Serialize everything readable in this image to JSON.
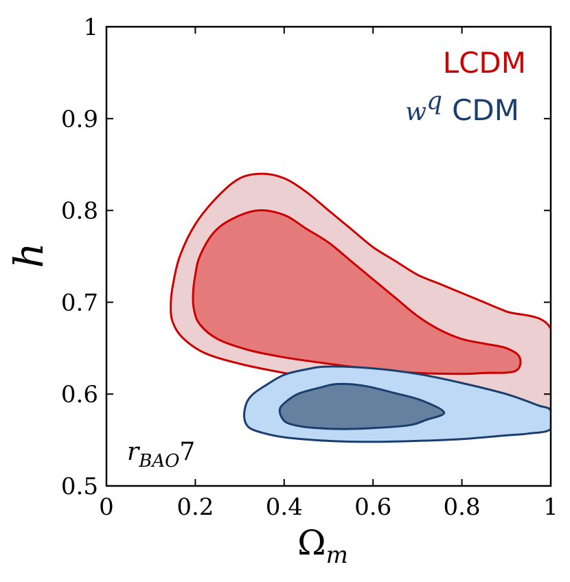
{
  "chart_data": {
    "type": "contour",
    "xlabel": "Ω",
    "xlabel_sub": "m",
    "ylabel": "h",
    "xlim": [
      0,
      1
    ],
    "ylim": [
      0.5,
      1
    ],
    "xticks": [
      0,
      0.2,
      0.4,
      0.6,
      0.8,
      1
    ],
    "xtick_labels": [
      "0",
      "0.2",
      "0.4",
      "0.6",
      "0.8",
      "1"
    ],
    "yticks": [
      0.5,
      0.6,
      0.7,
      0.8,
      0.9,
      1
    ],
    "ytick_labels": [
      "0.5",
      "0.6",
      "0.7",
      "0.8",
      "0.9",
      "1"
    ],
    "annotation": {
      "main": "r",
      "sub": "BAO",
      "suffix": "7"
    },
    "legend": [
      {
        "label": "LCDM",
        "prefix": "",
        "prefix_sup": "",
        "color": "#cc0000"
      },
      {
        "label": "CDM",
        "prefix": "w",
        "prefix_sup": "q",
        "color": "#1a3f6f"
      }
    ],
    "series": [
      {
        "name": "LCDM",
        "edge_color": "#cc0000",
        "contours": [
          {
            "level": "2sigma",
            "fill": "#ecd0d1",
            "points": [
              [
                0.145,
                0.7
              ],
              [
                0.15,
                0.72
              ],
              [
                0.165,
                0.75
              ],
              [
                0.2,
                0.785
              ],
              [
                0.25,
                0.815
              ],
              [
                0.3,
                0.835
              ],
              [
                0.35,
                0.84
              ],
              [
                0.4,
                0.835
              ],
              [
                0.45,
                0.82
              ],
              [
                0.5,
                0.8
              ],
              [
                0.55,
                0.78
              ],
              [
                0.6,
                0.76
              ],
              [
                0.65,
                0.745
              ],
              [
                0.7,
                0.73
              ],
              [
                0.75,
                0.72
              ],
              [
                0.8,
                0.71
              ],
              [
                0.85,
                0.7
              ],
              [
                0.9,
                0.69
              ],
              [
                1.0,
                0.671
              ],
              [
                1.0,
                0.585
              ],
              [
                0.9,
                0.591
              ],
              [
                0.8,
                0.597
              ],
              [
                0.7,
                0.603
              ],
              [
                0.6,
                0.609
              ],
              [
                0.5,
                0.615
              ],
              [
                0.4,
                0.623
              ],
              [
                0.3,
                0.633
              ],
              [
                0.22,
                0.645
              ],
              [
                0.17,
                0.662
              ],
              [
                0.148,
                0.68
              ]
            ]
          },
          {
            "level": "1sigma",
            "fill": "#e57a7a",
            "points": [
              [
                0.195,
                0.71
              ],
              [
                0.2,
                0.73
              ],
              [
                0.21,
                0.75
              ],
              [
                0.24,
                0.775
              ],
              [
                0.28,
                0.79
              ],
              [
                0.34,
                0.8
              ],
              [
                0.4,
                0.795
              ],
              [
                0.45,
                0.78
              ],
              [
                0.5,
                0.765
              ],
              [
                0.55,
                0.745
              ],
              [
                0.6,
                0.725
              ],
              [
                0.65,
                0.705
              ],
              [
                0.7,
                0.685
              ],
              [
                0.75,
                0.67
              ],
              [
                0.8,
                0.66
              ],
              [
                0.85,
                0.655
              ],
              [
                0.9,
                0.65
              ],
              [
                0.93,
                0.64
              ],
              [
                0.92,
                0.625
              ],
              [
                0.85,
                0.623
              ],
              [
                0.8,
                0.622
              ],
              [
                0.7,
                0.623
              ],
              [
                0.6,
                0.627
              ],
              [
                0.5,
                0.633
              ],
              [
                0.4,
                0.64
              ],
              [
                0.32,
                0.648
              ],
              [
                0.25,
                0.66
              ],
              [
                0.21,
                0.676
              ],
              [
                0.197,
                0.692
              ]
            ]
          }
        ]
      },
      {
        "name": "wq CDM",
        "edge_color": "#1a3f6f",
        "contours": [
          {
            "level": "2sigma",
            "fill": "#bdd9f6",
            "points": [
              [
                0.31,
                0.575
              ],
              [
                0.315,
                0.59
              ],
              [
                0.33,
                0.6
              ],
              [
                0.36,
                0.61
              ],
              [
                0.4,
                0.621
              ],
              [
                0.45,
                0.627
              ],
              [
                0.5,
                0.63
              ],
              [
                0.6,
                0.628
              ],
              [
                0.7,
                0.622
              ],
              [
                0.8,
                0.612
              ],
              [
                0.9,
                0.6
              ],
              [
                0.97,
                0.588
              ],
              [
                1.0,
                0.582
              ],
              [
                1.0,
                0.562
              ],
              [
                0.95,
                0.557
              ],
              [
                0.9,
                0.555
              ],
              [
                0.8,
                0.551
              ],
              [
                0.7,
                0.549
              ],
              [
                0.6,
                0.548
              ],
              [
                0.5,
                0.549
              ],
              [
                0.4,
                0.553
              ],
              [
                0.35,
                0.558
              ],
              [
                0.32,
                0.564
              ]
            ]
          },
          {
            "level": "1sigma",
            "fill": "#66809f",
            "points": [
              [
                0.39,
                0.583
              ],
              [
                0.4,
                0.59
              ],
              [
                0.43,
                0.6
              ],
              [
                0.48,
                0.607
              ],
              [
                0.52,
                0.611
              ],
              [
                0.58,
                0.609
              ],
              [
                0.65,
                0.601
              ],
              [
                0.71,
                0.593
              ],
              [
                0.76,
                0.58
              ],
              [
                0.72,
                0.572
              ],
              [
                0.68,
                0.566
              ],
              [
                0.6,
                0.563
              ],
              [
                0.52,
                0.562
              ],
              [
                0.45,
                0.564
              ],
              [
                0.41,
                0.568
              ],
              [
                0.395,
                0.574
              ]
            ]
          }
        ]
      }
    ]
  }
}
